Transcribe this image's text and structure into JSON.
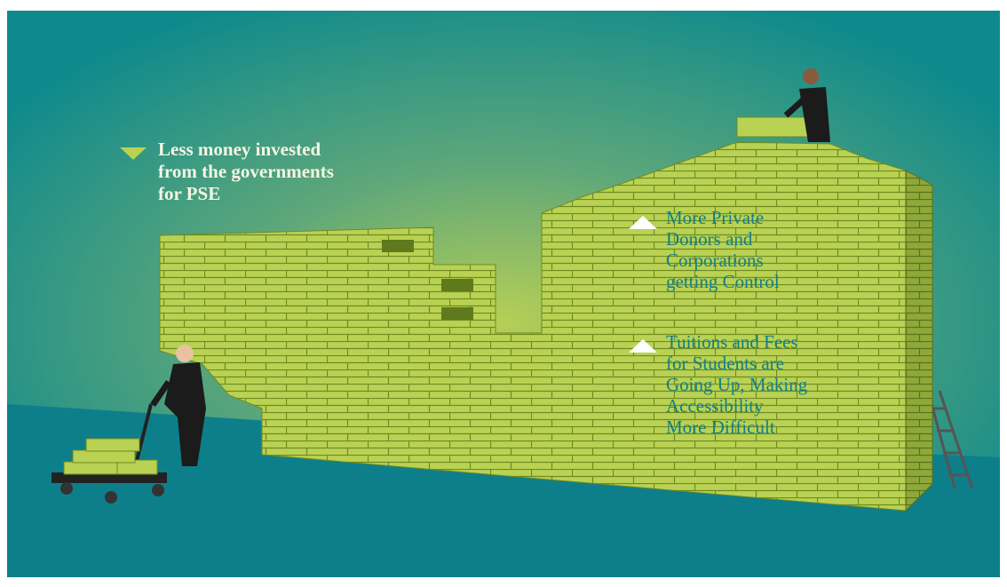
{
  "annotations": [
    {
      "lines": [
        "Less money invested",
        "from the governments",
        "for PSE"
      ]
    },
    {
      "lines": [
        "More Private",
        "Donors and",
        "Corporations",
        "getting Control"
      ]
    },
    {
      "lines": [
        "Tuitions and Fees",
        "for Students are",
        "Going Up, Making",
        "Accessibility",
        "More Difficult"
      ]
    }
  ]
}
